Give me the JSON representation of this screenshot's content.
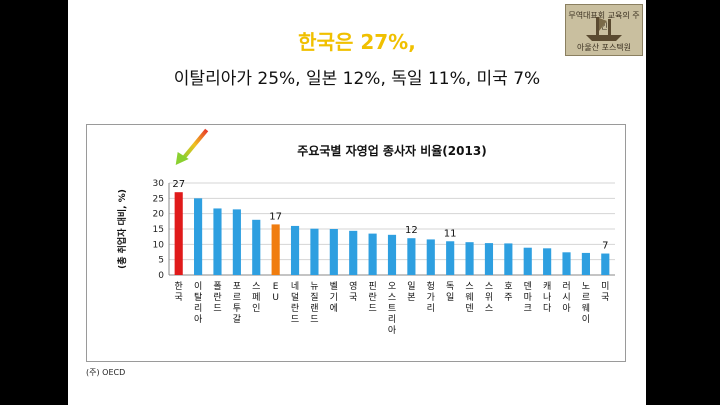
{
  "slide": {
    "headline": "한국은 27%,",
    "subhead": "이탈리아가 25%, 일본 12%, 독일 11%, 미국 7%",
    "source_note": "(주) OECD",
    "logo_text": [
      "무역대표회 교육의 주인",
      "아울산 포스텍원"
    ]
  },
  "chart_data": {
    "type": "bar",
    "title": "주요국별 자영업  종사자 비율(2013)",
    "ylabel": "(총 취업자 대비, %)",
    "xlabel": "",
    "ylim": [
      0,
      30
    ],
    "yticks": [
      0,
      5,
      10,
      15,
      20,
      25,
      30
    ],
    "grid": true,
    "categories": [
      "한국",
      "이탈리아",
      "폴란드",
      "포르투갈",
      "스페인",
      "EU",
      "네덜란드",
      "뉴질랜드",
      "벨기에",
      "영국",
      "핀란드",
      "오스트리아",
      "일본",
      "헝가리",
      "독일",
      "스웨덴",
      "스위스",
      "호주",
      "덴마크",
      "캐나다",
      "러시아",
      "노르웨이",
      "미국"
    ],
    "values": [
      27,
      25,
      21.7,
      21.4,
      18,
      16.5,
      16,
      15.1,
      15,
      14.4,
      13.5,
      13.1,
      12,
      11.6,
      11,
      10.7,
      10.4,
      10.3,
      8.9,
      8.7,
      7.4,
      7.2,
      7
    ],
    "data_labels": [
      {
        "category": "한국",
        "label": "27"
      },
      {
        "category": "EU",
        "label": "17"
      },
      {
        "category": "일본",
        "label": "12"
      },
      {
        "category": "독일",
        "label": "11"
      },
      {
        "category": "미국",
        "label": "7"
      }
    ],
    "colors": {
      "default": "#2e9fe0",
      "highlight_korea": "#e01a1a",
      "highlight_eu": "#f07d10"
    },
    "highlight": {
      "한국": "highlight_korea",
      "EU": "highlight_eu"
    },
    "annotation_arrow": "arrow-icon pointing at 한국 bar"
  }
}
